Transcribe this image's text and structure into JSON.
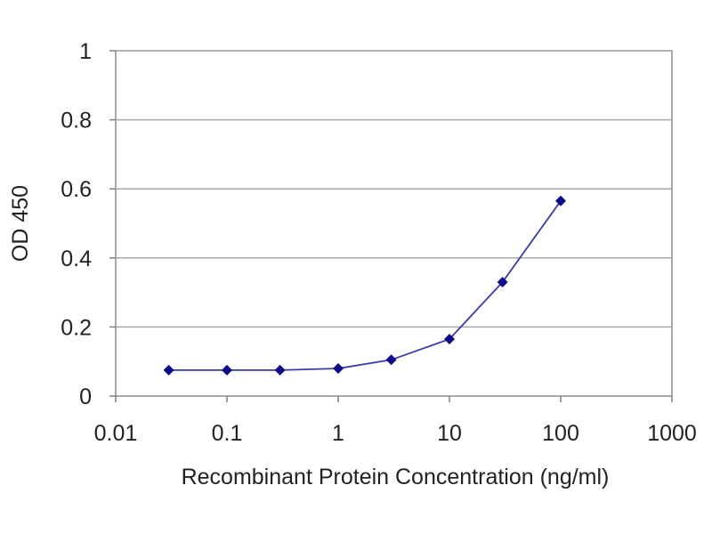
{
  "chart_data": {
    "type": "line",
    "title": "",
    "xlabel": "Recombinant Protein Concentration (ng/ml)",
    "ylabel": "OD 450",
    "x_scale": "log",
    "xlim": [
      0.01,
      1000
    ],
    "ylim": [
      0,
      1
    ],
    "x_ticks": [
      "0.01",
      "0.1",
      "1",
      "10",
      "100",
      "1000"
    ],
    "y_ticks": [
      "0",
      "0.2",
      "0.4",
      "0.6",
      "0.8",
      "1"
    ],
    "grid": "horizontal",
    "series": [
      {
        "x": [
          0.03,
          0.1,
          0.3,
          1,
          3,
          10,
          30,
          100
        ],
        "y": [
          0.075,
          0.075,
          0.075,
          0.08,
          0.105,
          0.165,
          0.33,
          0.565
        ]
      }
    ],
    "colors": {
      "line": "#3b3ba8",
      "marker": "#0c0c8a",
      "grid": "#a9a9a9",
      "axis": "#7f7f7f"
    }
  }
}
